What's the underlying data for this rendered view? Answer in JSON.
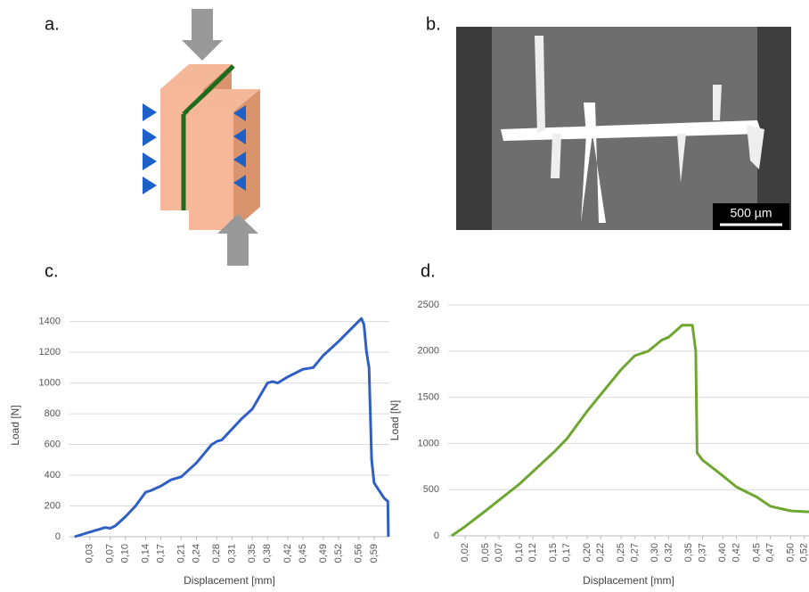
{
  "panels": {
    "a": "a.",
    "b": "b.",
    "c": "c.",
    "d": "d.",
    "scale_bar": "500 µm"
  },
  "chart_data": [
    {
      "type": "line",
      "xlabel": "Displacement [mm]",
      "ylabel": "Load [N]",
      "grid": true,
      "x": [
        0,
        0.03,
        0.05,
        0.06,
        0.07,
        0.08,
        0.1,
        0.12,
        0.14,
        0.15,
        0.17,
        0.19,
        0.21,
        0.24,
        0.27,
        0.28,
        0.29,
        0.31,
        0.33,
        0.35,
        0.38,
        0.39,
        0.4,
        0.42,
        0.45,
        0.47,
        0.49,
        0.52,
        0.55,
        0.565,
        0.57,
        0.575,
        0.58,
        0.585,
        0.59,
        0.6,
        0.61,
        0.617,
        0.618
      ],
      "series": [
        {
          "color": "#2f5fc4",
          "values": [
            0,
            30,
            50,
            60,
            55,
            70,
            130,
            200,
            290,
            300,
            330,
            370,
            390,
            480,
            600,
            620,
            630,
            700,
            770,
            830,
            1000,
            1010,
            1000,
            1040,
            1090,
            1100,
            1180,
            1270,
            1370,
            1420,
            1380,
            1200,
            1100,
            500,
            350,
            300,
            250,
            230,
            0
          ]
        }
      ],
      "xlim": [
        -0.01,
        0.62
      ],
      "ylim": [
        0,
        1450
      ],
      "xticks": [
        {
          "value": 0.03,
          "label": "0,03"
        },
        {
          "value": 0.07,
          "label": "0,07"
        },
        {
          "value": 0.1,
          "label": "0,10"
        },
        {
          "value": 0.14,
          "label": "0,14"
        },
        {
          "value": 0.17,
          "label": "0,17"
        },
        {
          "value": 0.21,
          "label": "0,21"
        },
        {
          "value": 0.24,
          "label": "0,24"
        },
        {
          "value": 0.28,
          "label": "0,28"
        },
        {
          "value": 0.31,
          "label": "0,31"
        },
        {
          "value": 0.35,
          "label": "0,35"
        },
        {
          "value": 0.38,
          "label": "0,38"
        },
        {
          "value": 0.42,
          "label": "0,42"
        },
        {
          "value": 0.45,
          "label": "0,45"
        },
        {
          "value": 0.49,
          "label": "0,49"
        },
        {
          "value": 0.52,
          "label": "0,52"
        },
        {
          "value": 0.56,
          "label": "0,56"
        },
        {
          "value": 0.59,
          "label": "0,59"
        }
      ],
      "yticks": [
        0,
        200,
        400,
        600,
        800,
        1000,
        1200,
        1400
      ]
    },
    {
      "type": "line",
      "xlabel": "Displacement [mm]",
      "ylabel": "Load [N]",
      "grid": true,
      "x": [
        0,
        0.02,
        0.05,
        0.1,
        0.15,
        0.17,
        0.2,
        0.25,
        0.27,
        0.29,
        0.31,
        0.32,
        0.34,
        0.355,
        0.36,
        0.362,
        0.37,
        0.4,
        0.42,
        0.45,
        0.47,
        0.5,
        0.527
      ],
      "series": [
        {
          "color": "#6fa632",
          "values": [
            0,
            100,
            270,
            560,
            900,
            1050,
            1350,
            1800,
            1950,
            2000,
            2120,
            2150,
            2280,
            2280,
            2000,
            900,
            820,
            650,
            530,
            420,
            320,
            270,
            260
          ]
        }
      ],
      "xlim": [
        -0.005,
        0.527
      ],
      "ylim": [
        0,
        2500
      ],
      "xticks": [
        {
          "value": 0.02,
          "label": "0,02"
        },
        {
          "value": 0.05,
          "label": "0,05"
        },
        {
          "value": 0.07,
          "label": "0,07"
        },
        {
          "value": 0.1,
          "label": "0,10"
        },
        {
          "value": 0.12,
          "label": "0,12"
        },
        {
          "value": 0.15,
          "label": "0,15"
        },
        {
          "value": 0.17,
          "label": "0,17"
        },
        {
          "value": 0.2,
          "label": "0,20"
        },
        {
          "value": 0.22,
          "label": "0,22"
        },
        {
          "value": 0.25,
          "label": "0,25"
        },
        {
          "value": 0.27,
          "label": "0,27"
        },
        {
          "value": 0.3,
          "label": "0,30"
        },
        {
          "value": 0.32,
          "label": "0,32"
        },
        {
          "value": 0.35,
          "label": "0,35"
        },
        {
          "value": 0.37,
          "label": "0,37"
        },
        {
          "value": 0.4,
          "label": "0,40"
        },
        {
          "value": 0.42,
          "label": "0,42"
        },
        {
          "value": 0.45,
          "label": "0,45"
        },
        {
          "value": 0.47,
          "label": "0,47"
        },
        {
          "value": 0.5,
          "label": "0,50"
        },
        {
          "value": 0.52,
          "label": "0,52"
        }
      ],
      "yticks": [
        0,
        500,
        1000,
        1500,
        2000,
        2500
      ]
    }
  ]
}
